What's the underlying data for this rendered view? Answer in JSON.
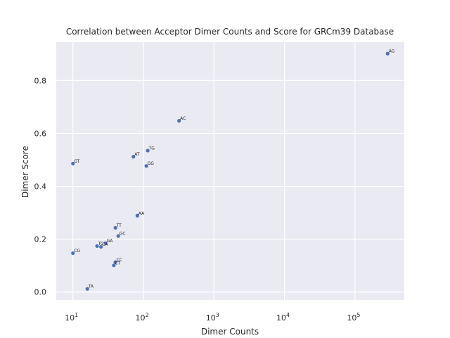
{
  "chart_data": {
    "type": "scatter",
    "title": "Correlation between Acceptor Dimer Counts and Score for GRCm39 Database",
    "xlabel": "Dimer Counts",
    "ylabel": "Dimer Score",
    "x_scale": "log",
    "xlim": [
      5.8,
      500000
    ],
    "ylim": [
      -0.03,
      0.945
    ],
    "x_ticks": [
      10,
      100,
      1000,
      10000,
      100000
    ],
    "x_tick_labels": [
      {
        "base": "10",
        "exp": "1"
      },
      {
        "base": "10",
        "exp": "2"
      },
      {
        "base": "10",
        "exp": "3"
      },
      {
        "base": "10",
        "exp": "4"
      },
      {
        "base": "10",
        "exp": "5"
      }
    ],
    "y_ticks": [
      0.0,
      0.2,
      0.4,
      0.6,
      0.8
    ],
    "y_tick_labels": [
      "0.0",
      "0.2",
      "0.4",
      "0.6",
      "0.8"
    ],
    "grid": true,
    "background": "#eaeaf2",
    "point_color": "#4c72b0",
    "points": [
      {
        "label": "AG",
        "x": 290000,
        "y": 0.902
      },
      {
        "label": "AC",
        "x": 320,
        "y": 0.648
      },
      {
        "label": "TG",
        "x": 115,
        "y": 0.535
      },
      {
        "label": "AT",
        "x": 72,
        "y": 0.512
      },
      {
        "label": "GT",
        "x": 10,
        "y": 0.486
      },
      {
        "label": "GG",
        "x": 110,
        "y": 0.477
      },
      {
        "label": "AA",
        "x": 82,
        "y": 0.289
      },
      {
        "label": "TT",
        "x": 40,
        "y": 0.243
      },
      {
        "label": "GC",
        "x": 44,
        "y": 0.212
      },
      {
        "label": "GA",
        "x": 29,
        "y": 0.185
      },
      {
        "label": "TC",
        "x": 22,
        "y": 0.174
      },
      {
        "label": "CA",
        "x": 25,
        "y": 0.171
      },
      {
        "label": "CG",
        "x": 10,
        "y": 0.147
      },
      {
        "label": "CC",
        "x": 40,
        "y": 0.113
      },
      {
        "label": "CT",
        "x": 38,
        "y": 0.101
      },
      {
        "label": "TA",
        "x": 16,
        "y": 0.012
      }
    ]
  }
}
